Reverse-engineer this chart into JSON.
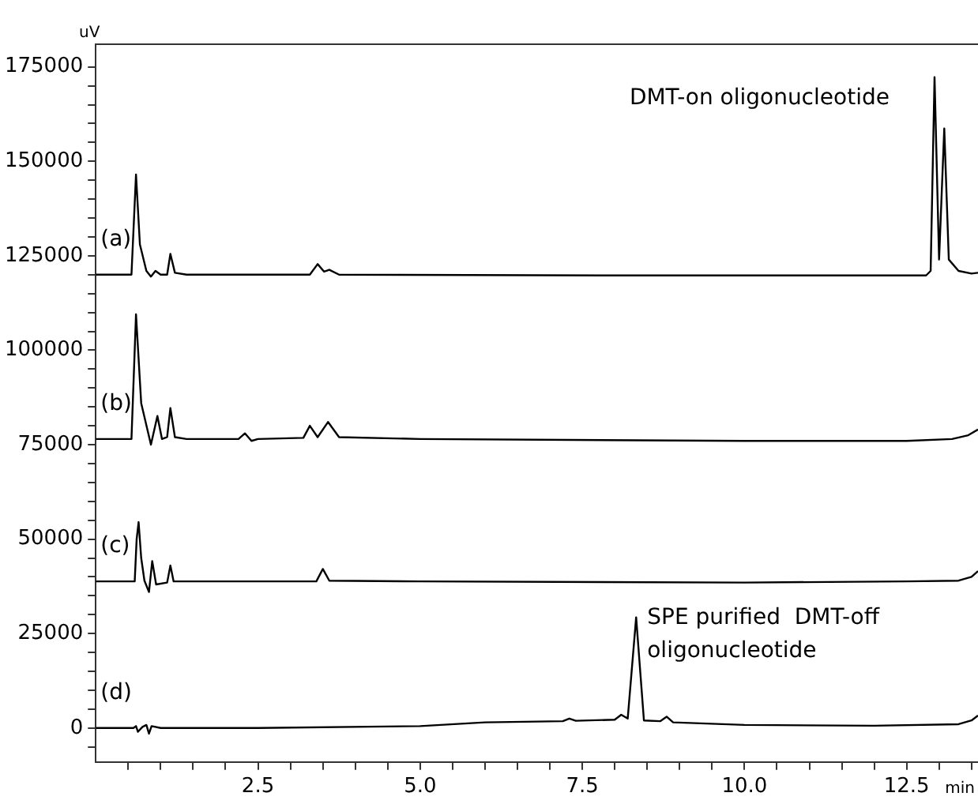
{
  "chart_data": {
    "type": "line",
    "xlabel": "min",
    "ylabel": "uV",
    "legend": false,
    "marker": "none",
    "line_style": "solid",
    "grid": false,
    "xlim": [
      0,
      13.6
    ],
    "ylim": [
      -9000,
      181000
    ],
    "xticks": [
      {
        "value": 0.5,
        "label": null
      },
      {
        "value": 1,
        "label": null
      },
      {
        "value": 1.5,
        "label": null
      },
      {
        "value": 2,
        "label": null
      },
      2.5,
      {
        "value": 3,
        "label": null
      },
      {
        "value": 3.5,
        "label": null
      },
      {
        "value": 4,
        "label": null
      },
      {
        "value": 4.5,
        "label": null
      },
      {
        "value": 5,
        "label": "5.0"
      },
      {
        "value": 5.5,
        "label": null
      },
      {
        "value": 6,
        "label": null
      },
      {
        "value": 6.5,
        "label": null
      },
      {
        "value": 7,
        "label": null
      },
      7.5,
      {
        "value": 8,
        "label": null
      },
      {
        "value": 8.5,
        "label": null
      },
      {
        "value": 9,
        "label": null
      },
      {
        "value": 9.5,
        "label": null
      },
      {
        "value": 10,
        "label": "10.0"
      },
      {
        "value": 10.5,
        "label": null
      },
      {
        "value": 11,
        "label": null
      },
      {
        "value": 11.5,
        "label": null
      },
      {
        "value": 12,
        "label": null
      },
      12.5,
      {
        "value": 13,
        "label": null
      },
      {
        "value": 13.5,
        "label": null
      }
    ],
    "yticks": [
      {
        "value": -5000,
        "label": null
      },
      0,
      {
        "value": 5000,
        "label": null
      },
      {
        "value": 10000,
        "label": null
      },
      {
        "value": 15000,
        "label": null
      },
      {
        "value": 20000,
        "label": null
      },
      25000,
      {
        "value": 30000,
        "label": null
      },
      {
        "value": 35000,
        "label": null
      },
      {
        "value": 40000,
        "label": null
      },
      {
        "value": 45000,
        "label": null
      },
      50000,
      {
        "value": 55000,
        "label": null
      },
      {
        "value": 60000,
        "label": null
      },
      {
        "value": 65000,
        "label": null
      },
      {
        "value": 70000,
        "label": null
      },
      75000,
      {
        "value": 80000,
        "label": null
      },
      {
        "value": 85000,
        "label": null
      },
      {
        "value": 90000,
        "label": null
      },
      {
        "value": 95000,
        "label": null
      },
      100000,
      {
        "value": 105000,
        "label": null
      },
      {
        "value": 110000,
        "label": null
      },
      {
        "value": 115000,
        "label": null
      },
      {
        "value": 120000,
        "label": null
      },
      125000,
      {
        "value": 130000,
        "label": null
      },
      {
        "value": 135000,
        "label": null
      },
      {
        "value": 140000,
        "label": null
      },
      {
        "value": 145000,
        "label": null
      },
      150000,
      {
        "value": 155000,
        "label": null
      },
      {
        "value": 160000,
        "label": null
      },
      {
        "value": 165000,
        "label": null
      },
      {
        "value": 170000,
        "label": null
      },
      175000
    ],
    "annotations": [
      "DMT-on oligonucleotide",
      "SPE purified  DMT-off\noligonucleotide"
    ],
    "series": [
      {
        "name": "(a)",
        "color": "#000000",
        "x": [
          0,
          0.55,
          0.62,
          0.68,
          0.78,
          0.85,
          0.92,
          1.0,
          1.1,
          1.15,
          1.22,
          1.4,
          3.3,
          3.42,
          3.52,
          3.6,
          3.75,
          8,
          12.8,
          12.87,
          12.93,
          13.0,
          13.08,
          13.15,
          13.3,
          13.5,
          13.6
        ],
        "values": [
          120000,
          120000,
          146500,
          128000,
          121000,
          119500,
          121000,
          120000,
          120000,
          125500,
          120500,
          120000,
          120000,
          122800,
          120800,
          121300,
          120000,
          119800,
          119800,
          121000,
          172300,
          124000,
          158700,
          124000,
          121000,
          120300,
          120500
        ]
      },
      {
        "name": "(b)",
        "color": "#000000",
        "x": [
          0,
          0.55,
          0.62,
          0.7,
          0.85,
          0.95,
          1.02,
          1.1,
          1.15,
          1.22,
          1.4,
          2.2,
          2.3,
          2.4,
          2.5,
          3.2,
          3.3,
          3.42,
          3.58,
          3.75,
          5,
          10,
          12.5,
          13.2,
          13.45,
          13.6
        ],
        "values": [
          76500,
          76500,
          109500,
          86000,
          75000,
          82600,
          76500,
          77000,
          84700,
          77000,
          76500,
          76500,
          78000,
          76000,
          76500,
          76800,
          80000,
          77000,
          81000,
          77000,
          76500,
          76000,
          76000,
          76500,
          77500,
          79000
        ]
      },
      {
        "name": "(c)",
        "color": "#000000",
        "x": [
          0,
          0.6,
          0.63,
          0.66,
          0.7,
          0.75,
          0.82,
          0.87,
          0.93,
          1.1,
          1.15,
          1.2,
          2.5,
          3.4,
          3.5,
          3.6,
          5,
          10,
          12.5,
          13.3,
          13.5,
          13.6
        ],
        "values": [
          38800,
          38800,
          50000,
          54500,
          45000,
          39000,
          36000,
          44200,
          38000,
          38500,
          43000,
          38800,
          38800,
          38800,
          42100,
          39000,
          38800,
          38500,
          38800,
          39000,
          40000,
          41500
        ]
      },
      {
        "name": "(d)",
        "color": "#000000",
        "x": [
          0,
          0.58,
          0.62,
          0.65,
          0.72,
          0.78,
          0.82,
          0.86,
          1.0,
          2.5,
          5,
          6,
          7.2,
          7.3,
          7.4,
          8.0,
          8.1,
          8.2,
          8.33,
          8.45,
          8.7,
          8.8,
          8.9,
          10,
          12,
          13.3,
          13.5,
          13.6
        ],
        "values": [
          0,
          0,
          500,
          -1000,
          300,
          800,
          -1500,
          500,
          0,
          0,
          500,
          1500,
          1800,
          2500,
          1900,
          2200,
          3500,
          2500,
          29300,
          2000,
          1800,
          3000,
          1500,
          800,
          600,
          1000,
          2000,
          3300
        ]
      }
    ]
  }
}
